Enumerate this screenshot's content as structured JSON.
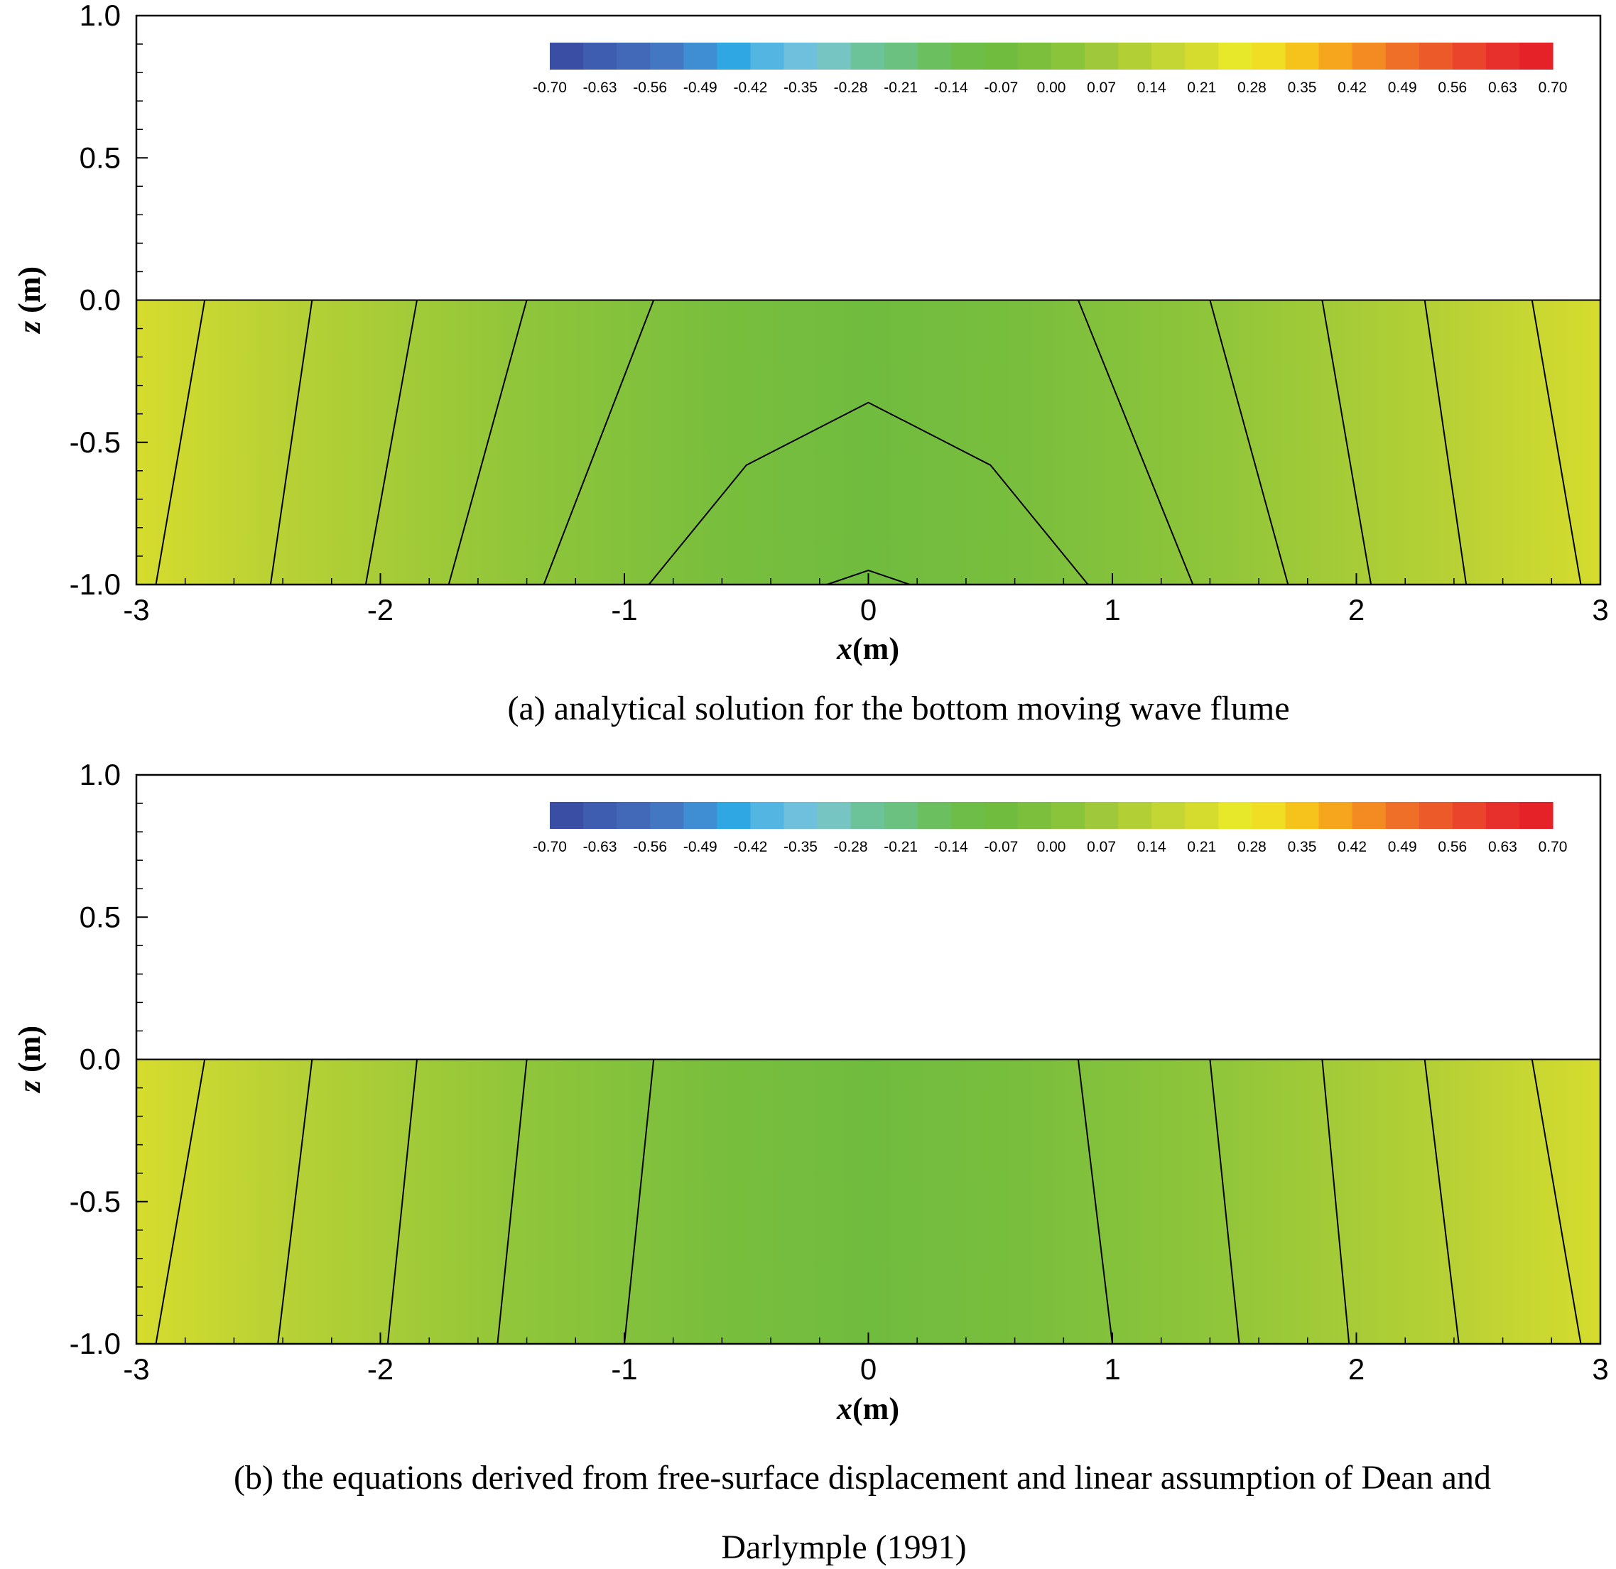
{
  "colors": {
    "colormap": [
      "#3a4fa3",
      "#3e5db0",
      "#4169b8",
      "#4477c2",
      "#3f8ed3",
      "#2fa7e3",
      "#52b5e2",
      "#6fc0dd",
      "#77c5c2",
      "#6cc39a",
      "#6bc17f",
      "#6bbf5e",
      "#6dbd48",
      "#70bc3f",
      "#7bbf3c",
      "#8ac43b",
      "#9fc93a",
      "#b2cf36",
      "#c4d634",
      "#d6dc2e",
      "#e8e82a",
      "#f0de24",
      "#f6c21c",
      "#f6a61c",
      "#f38a22",
      "#ef6f28",
      "#ec5a2a",
      "#ea442c",
      "#e7302c",
      "#e52228"
    ],
    "contour_line": "#000000"
  },
  "chart_data": [
    {
      "type": "heatmap",
      "panel": "a",
      "caption": "(a) analytical solution for the bottom moving wave flume",
      "xlabel_var": "x",
      "xlabel_unit": "(m)",
      "ylabel_var": "z",
      "ylabel_unit": " (m)",
      "xlim": [
        -3,
        3
      ],
      "ylim": [
        -1,
        1
      ],
      "x_ticks": [
        "-3",
        "-2",
        "-1",
        "0",
        "1",
        "2",
        "3"
      ],
      "y_ticks": [
        "1.0",
        "0.5",
        "0.0",
        "-0.5",
        "-1.0"
      ],
      "colorbar_range": [
        -0.7,
        0.7
      ],
      "colorbar_ticks": [
        "-0.70",
        "-0.63",
        "-0.56",
        "-0.49",
        "-0.42",
        "-0.35",
        "-0.28",
        "-0.21",
        "-0.14",
        "-0.07",
        "0.00",
        "0.07",
        "0.14",
        "0.21",
        "0.28",
        "0.35",
        "0.42",
        "0.49",
        "0.56",
        "0.63",
        "0.70"
      ],
      "legend_position": "top-right",
      "fluid_domain_z": [
        -1,
        0
      ],
      "contours": [
        {
          "level": 0.21,
          "points": [
            [
              -2.72,
              0
            ],
            [
              -2.92,
              -1
            ]
          ]
        },
        {
          "level": 0.14,
          "points": [
            [
              -2.28,
              0
            ],
            [
              -2.45,
              -1
            ]
          ]
        },
        {
          "level": 0.07,
          "points": [
            [
              -1.85,
              0
            ],
            [
              -2.06,
              -1
            ]
          ]
        },
        {
          "level": 0.0,
          "points": [
            [
              -1.4,
              0
            ],
            [
              -1.72,
              -1
            ]
          ]
        },
        {
          "level": -0.07,
          "points": [
            [
              -0.88,
              0
            ],
            [
              -1.33,
              -1
            ]
          ]
        },
        {
          "level": -0.07,
          "points": [
            [
              0.86,
              0
            ],
            [
              1.33,
              -1
            ]
          ]
        },
        {
          "level": 0.0,
          "points": [
            [
              1.4,
              0
            ],
            [
              1.72,
              -1
            ]
          ]
        },
        {
          "level": 0.07,
          "points": [
            [
              1.86,
              0
            ],
            [
              2.06,
              -1
            ]
          ]
        },
        {
          "level": 0.14,
          "points": [
            [
              2.28,
              0
            ],
            [
              2.45,
              -1
            ]
          ]
        },
        {
          "level": 0.21,
          "points": [
            [
              2.72,
              0
            ],
            [
              2.92,
              -1
            ]
          ]
        },
        {
          "level": -0.14,
          "points": [
            [
              -0.9,
              -1
            ],
            [
              -0.5,
              -0.58
            ],
            [
              0,
              -0.36
            ],
            [
              0.5,
              -0.58
            ],
            [
              0.9,
              -1
            ]
          ]
        },
        {
          "level": -0.21,
          "points": [
            [
              -0.17,
              -1
            ],
            [
              0,
              -0.95
            ],
            [
              0.17,
              -1
            ]
          ]
        }
      ]
    },
    {
      "type": "heatmap",
      "panel": "b",
      "caption_line1": "(b) the equations derived from free-surface displacement and linear assumption of Dean and",
      "caption_line2": "Darlymple (1991)",
      "xlabel_var": "x",
      "xlabel_unit": "(m)",
      "ylabel_var": "z",
      "ylabel_unit": " (m)",
      "xlim": [
        -3,
        3
      ],
      "ylim": [
        -1,
        1
      ],
      "x_ticks": [
        "-3",
        "-2",
        "-1",
        "0",
        "1",
        "2",
        "3"
      ],
      "y_ticks": [
        "1.0",
        "0.5",
        "0.0",
        "-0.5",
        "-1.0"
      ],
      "colorbar_range": [
        -0.7,
        0.7
      ],
      "colorbar_ticks": [
        "-0.70",
        "-0.63",
        "-0.56",
        "-0.49",
        "-0.42",
        "-0.35",
        "-0.28",
        "-0.21",
        "-0.14",
        "-0.07",
        "0.00",
        "0.07",
        "0.14",
        "0.21",
        "0.28",
        "0.35",
        "0.42",
        "0.49",
        "0.56",
        "0.63",
        "0.70"
      ],
      "legend_position": "top-right",
      "fluid_domain_z": [
        -1,
        0
      ],
      "contours": [
        {
          "level": 0.21,
          "points": [
            [
              -2.72,
              0
            ],
            [
              -2.92,
              -1
            ]
          ]
        },
        {
          "level": 0.14,
          "points": [
            [
              -2.28,
              0
            ],
            [
              -2.42,
              -1
            ]
          ]
        },
        {
          "level": 0.07,
          "points": [
            [
              -1.85,
              0
            ],
            [
              -1.97,
              -1
            ]
          ]
        },
        {
          "level": 0.0,
          "points": [
            [
              -1.4,
              0
            ],
            [
              -1.52,
              -1
            ]
          ]
        },
        {
          "level": -0.07,
          "points": [
            [
              -0.88,
              0
            ],
            [
              -1,
              -1
            ]
          ]
        },
        {
          "level": -0.07,
          "points": [
            [
              0.86,
              0
            ],
            [
              1,
              -1
            ]
          ]
        },
        {
          "level": 0.0,
          "points": [
            [
              1.4,
              0
            ],
            [
              1.52,
              -1
            ]
          ]
        },
        {
          "level": 0.07,
          "points": [
            [
              1.86,
              0
            ],
            [
              1.97,
              -1
            ]
          ]
        },
        {
          "level": 0.14,
          "points": [
            [
              2.28,
              0
            ],
            [
              2.42,
              -1
            ]
          ]
        },
        {
          "level": 0.21,
          "points": [
            [
              2.72,
              0
            ],
            [
              2.92,
              -1
            ]
          ]
        }
      ]
    }
  ]
}
